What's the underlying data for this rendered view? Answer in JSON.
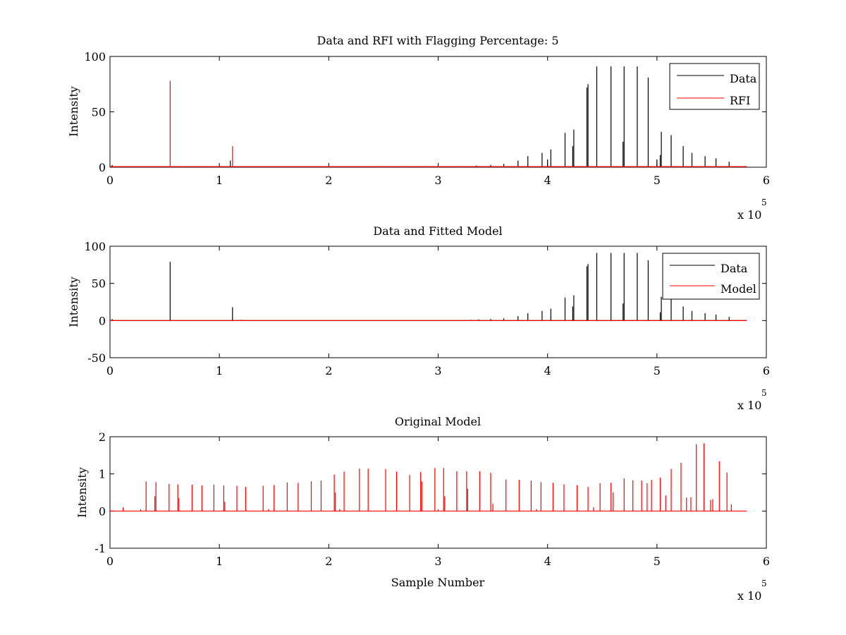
{
  "chart_data": [
    {
      "type": "line",
      "title": "Data and RFI with Flagging Percentage: 5",
      "xlabel": "",
      "ylabel": "Intensity",
      "xlim": [
        0,
        6
      ],
      "ylim": [
        0,
        100
      ],
      "x_multiplier_label": "x 10",
      "x_multiplier_exponent": "5",
      "xticks": [
        "0",
        "1",
        "2",
        "3",
        "4",
        "5",
        "6"
      ],
      "yticks": [
        "0",
        "50",
        "100"
      ],
      "legend": {
        "position": "top-right",
        "entries": [
          "Data",
          "RFI"
        ]
      },
      "series": [
        {
          "name": "Data",
          "color": "#000000",
          "baseline": 0.5,
          "spikes": [
            [
              0.02,
              2
            ],
            [
              1.1,
              6
            ],
            [
              2.5,
              1
            ],
            [
              2.7,
              1
            ],
            [
              2.9,
              1
            ],
            [
              3.0,
              1.5
            ],
            [
              3.2,
              1
            ],
            [
              3.35,
              1.5
            ],
            [
              3.48,
              2
            ],
            [
              3.6,
              3
            ],
            [
              3.73,
              6
            ],
            [
              3.82,
              10
            ],
            [
              3.95,
              13
            ],
            [
              4.0,
              7
            ],
            [
              4.03,
              16
            ],
            [
              4.16,
              31
            ],
            [
              4.24,
              34
            ],
            [
              4.23,
              19
            ],
            [
              4.36,
              72
            ],
            [
              4.37,
              75
            ],
            [
              4.45,
              91
            ],
            [
              4.58,
              91
            ],
            [
              4.7,
              91
            ],
            [
              4.69,
              23
            ],
            [
              4.82,
              91
            ],
            [
              4.92,
              81
            ],
            [
              5.0,
              7
            ],
            [
              5.03,
              11
            ],
            [
              5.04,
              32
            ],
            [
              5.13,
              29
            ],
            [
              5.24,
              19
            ],
            [
              5.32,
              13
            ],
            [
              5.44,
              10
            ],
            [
              5.54,
              8
            ],
            [
              5.66,
              5
            ]
          ]
        },
        {
          "name": "RFI",
          "color": "#ff0000",
          "baseline": 0.5,
          "spikes": [
            [
              0.55,
              78
            ],
            [
              1.12,
              19
            ],
            [
              0.01,
              1
            ]
          ]
        }
      ]
    },
    {
      "type": "line",
      "title": "Data and Fitted Model",
      "xlabel": "",
      "ylabel": "Intensity",
      "xlim": [
        0,
        6
      ],
      "ylim": [
        -50,
        100
      ],
      "x_multiplier_label": "x 10",
      "x_multiplier_exponent": "5",
      "xticks": [
        "0",
        "1",
        "2",
        "3",
        "4",
        "5",
        "6"
      ],
      "yticks": [
        "-50",
        "0",
        "50",
        "100"
      ],
      "legend": {
        "position": "top-right",
        "entries": [
          "Data",
          "Model"
        ]
      },
      "series": [
        {
          "name": "Data",
          "color": "#000000",
          "baseline": 0,
          "spikes": [
            [
              0.02,
              2
            ],
            [
              0.55,
              79
            ],
            [
              1.12,
              18
            ],
            [
              1.2,
              1
            ],
            [
              3.3,
              1
            ],
            [
              3.37,
              1.5
            ],
            [
              3.48,
              2
            ],
            [
              3.6,
              3
            ],
            [
              3.73,
              6
            ],
            [
              3.82,
              10
            ],
            [
              3.95,
              13
            ],
            [
              4.03,
              16
            ],
            [
              4.16,
              31
            ],
            [
              4.24,
              34
            ],
            [
              4.23,
              19
            ],
            [
              4.36,
              73
            ],
            [
              4.37,
              76
            ],
            [
              4.45,
              91
            ],
            [
              4.58,
              91
            ],
            [
              4.7,
              91
            ],
            [
              4.69,
              23
            ],
            [
              4.82,
              91
            ],
            [
              4.92,
              81
            ],
            [
              5.03,
              11
            ],
            [
              5.04,
              32
            ],
            [
              5.13,
              29
            ],
            [
              5.24,
              19
            ],
            [
              5.32,
              13
            ],
            [
              5.44,
              10
            ],
            [
              5.54,
              8
            ],
            [
              5.66,
              5
            ]
          ]
        },
        {
          "name": "Model",
          "color": "#ff0000",
          "baseline": 0,
          "spikes": []
        }
      ]
    },
    {
      "type": "line",
      "title": "Original Model",
      "xlabel": "Sample Number",
      "ylabel": "Intensity",
      "xlim": [
        0,
        6
      ],
      "ylim": [
        -1,
        2
      ],
      "x_multiplier_label": "x 10",
      "x_multiplier_exponent": "5",
      "xticks": [
        "0",
        "1",
        "2",
        "3",
        "4",
        "5",
        "6"
      ],
      "yticks": [
        "-1",
        "0",
        "1",
        "2"
      ],
      "series": [
        {
          "color": "#ff0000",
          "baseline": 0,
          "spikes": [
            [
              0.12,
              0.1
            ],
            [
              0.33,
              0.8
            ],
            [
              0.42,
              0.78
            ],
            [
              0.41,
              0.4
            ],
            [
              0.54,
              0.73
            ],
            [
              0.62,
              0.72
            ],
            [
              0.63,
              0.35
            ],
            [
              0.75,
              0.71
            ],
            [
              0.84,
              0.69
            ],
            [
              0.95,
              0.71
            ],
            [
              1.04,
              0.69
            ],
            [
              1.05,
              0.25
            ],
            [
              1.16,
              0.68
            ],
            [
              1.24,
              0.65
            ],
            [
              1.4,
              0.68
            ],
            [
              1.5,
              0.7
            ],
            [
              1.62,
              0.77
            ],
            [
              1.72,
              0.76
            ],
            [
              1.84,
              0.8
            ],
            [
              1.93,
              0.82
            ],
            [
              2.05,
              0.98
            ],
            [
              2.06,
              0.5
            ],
            [
              2.14,
              1.06
            ],
            [
              2.28,
              1.14
            ],
            [
              2.36,
              1.14
            ],
            [
              2.52,
              1.13
            ],
            [
              2.62,
              1.06
            ],
            [
              2.74,
              0.97
            ],
            [
              2.84,
              1.05
            ],
            [
              2.85,
              0.8
            ],
            [
              2.97,
              1.16
            ],
            [
              3.05,
              1.16
            ],
            [
              3.06,
              0.4
            ],
            [
              3.17,
              1.07
            ],
            [
              3.26,
              1.07
            ],
            [
              3.27,
              0.6
            ],
            [
              3.38,
              1.07
            ],
            [
              3.48,
              1.03
            ],
            [
              3.5,
              0.2
            ],
            [
              3.62,
              0.85
            ],
            [
              3.74,
              0.84
            ],
            [
              3.85,
              0.82
            ],
            [
              3.94,
              0.78
            ],
            [
              4.05,
              0.76
            ],
            [
              4.15,
              0.72
            ],
            [
              4.27,
              0.7
            ],
            [
              4.37,
              0.65
            ],
            [
              4.48,
              0.75
            ],
            [
              4.58,
              0.76
            ],
            [
              4.6,
              0.5
            ],
            [
              4.7,
              0.88
            ],
            [
              4.78,
              0.83
            ],
            [
              4.86,
              0.82
            ],
            [
              4.91,
              0.75
            ],
            [
              4.95,
              0.84
            ],
            [
              5.03,
              0.9
            ],
            [
              5.08,
              0.42
            ],
            [
              5.13,
              1.13
            ],
            [
              5.22,
              1.3
            ],
            [
              5.27,
              0.36
            ],
            [
              5.31,
              0.37
            ],
            [
              5.36,
              1.8
            ],
            [
              5.43,
              1.82
            ],
            [
              5.49,
              0.3
            ],
            [
              5.51,
              0.32
            ],
            [
              5.57,
              1.34
            ],
            [
              5.64,
              1.04
            ],
            [
              5.68,
              0.18
            ],
            [
              0.28,
              0.05
            ],
            [
              1.45,
              0.05
            ],
            [
              2.1,
              0.05
            ],
            [
              3.0,
              0.05
            ],
            [
              3.9,
              0.05
            ],
            [
              4.42,
              0.1
            ]
          ]
        }
      ]
    }
  ]
}
